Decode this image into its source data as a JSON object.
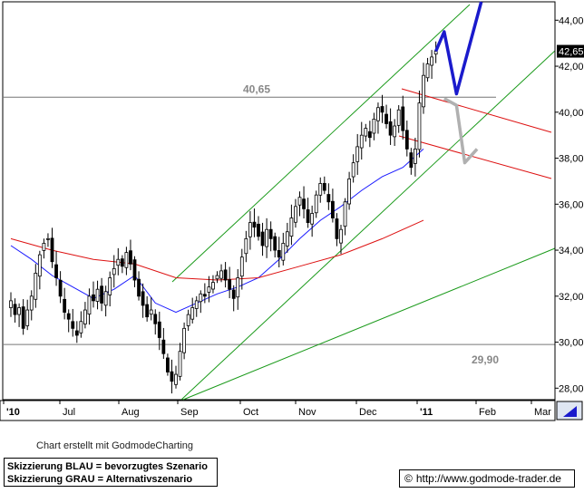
{
  "chart_data": {
    "type": "candlestick",
    "title": "",
    "xlabel": "",
    "ylabel": "",
    "ylim": [
      27.5,
      44.8
    ],
    "y_ticks": [
      "28,00",
      "30,00",
      "32,00",
      "34,00",
      "36,00",
      "38,00",
      "40,00",
      "42,00",
      "44,00"
    ],
    "x_tick_labels": [
      "'10",
      "Jul",
      "Aug",
      "Sep",
      "Oct",
      "Nov",
      "Dec",
      "'11",
      "Feb",
      "Mar"
    ],
    "last_price": "42,65",
    "grid": false,
    "horizontal_levels": [
      {
        "value": 40.65,
        "label": "40,65"
      },
      {
        "value": 29.9,
        "label": "29,90"
      }
    ],
    "price_path": [
      [
        0,
        31.8
      ],
      [
        1,
        31.2
      ],
      [
        2,
        31.5
      ],
      [
        3,
        30.6
      ],
      [
        4,
        31.4
      ],
      [
        5,
        32.0
      ],
      [
        6,
        33.0
      ],
      [
        7,
        33.8
      ],
      [
        8,
        34.3
      ],
      [
        9,
        34.5
      ],
      [
        10,
        33.5
      ],
      [
        11,
        32.8
      ],
      [
        12,
        32.0
      ],
      [
        13,
        31.3
      ],
      [
        14,
        31.0
      ],
      [
        15,
        30.6
      ],
      [
        16,
        30.3
      ],
      [
        17,
        30.9
      ],
      [
        18,
        31.4
      ],
      [
        19,
        32.0
      ],
      [
        20,
        31.8
      ],
      [
        21,
        32.3
      ],
      [
        22,
        31.7
      ],
      [
        23,
        32.2
      ],
      [
        24,
        32.8
      ],
      [
        25,
        33.2
      ],
      [
        26,
        33.6
      ],
      [
        27,
        33.3
      ],
      [
        28,
        33.9
      ],
      [
        29,
        33.4
      ],
      [
        30,
        32.7
      ],
      [
        31,
        32.0
      ],
      [
        32,
        31.6
      ],
      [
        33,
        31.1
      ],
      [
        34,
        31.4
      ],
      [
        35,
        30.8
      ],
      [
        36,
        30.2
      ],
      [
        37,
        29.5
      ],
      [
        38,
        28.7
      ],
      [
        39,
        28.3
      ],
      [
        40,
        28.6
      ],
      [
        41,
        29.6
      ],
      [
        42,
        30.6
      ],
      [
        43,
        31.2
      ],
      [
        44,
        31.5
      ],
      [
        45,
        31.8
      ],
      [
        46,
        32.1
      ],
      [
        47,
        32.0
      ],
      [
        48,
        32.4
      ],
      [
        49,
        32.6
      ],
      [
        50,
        32.9
      ],
      [
        51,
        33.1
      ],
      [
        52,
        32.7
      ],
      [
        53,
        32.3
      ],
      [
        54,
        31.9
      ],
      [
        55,
        32.8
      ],
      [
        56,
        33.7
      ],
      [
        57,
        34.5
      ],
      [
        58,
        35.2
      ],
      [
        59,
        35.0
      ],
      [
        60,
        34.6
      ],
      [
        61,
        34.2
      ],
      [
        62,
        34.9
      ],
      [
        63,
        34.5
      ],
      [
        64,
        34.0
      ],
      [
        65,
        33.7
      ],
      [
        66,
        34.3
      ],
      [
        67,
        34.8
      ],
      [
        68,
        35.4
      ],
      [
        69,
        35.9
      ],
      [
        70,
        36.3
      ],
      [
        71,
        35.8
      ],
      [
        72,
        35.2
      ],
      [
        73,
        35.6
      ],
      [
        74,
        36.4
      ],
      [
        75,
        36.9
      ],
      [
        76,
        36.6
      ],
      [
        77,
        36.1
      ],
      [
        78,
        35.4
      ],
      [
        79,
        34.5
      ],
      [
        80,
        34.9
      ],
      [
        81,
        36.1
      ],
      [
        82,
        37.1
      ],
      [
        83,
        37.8
      ],
      [
        84,
        38.5
      ],
      [
        85,
        39.0
      ],
      [
        86,
        39.3
      ],
      [
        87,
        38.9
      ],
      [
        88,
        39.7
      ],
      [
        89,
        40.2
      ],
      [
        90,
        40.0
      ],
      [
        91,
        39.5
      ],
      [
        92,
        39.0
      ],
      [
        93,
        39.4
      ],
      [
        94,
        40.1
      ],
      [
        95,
        39.2
      ],
      [
        96,
        38.4
      ],
      [
        97,
        37.6
      ],
      [
        98,
        38.4
      ],
      [
        99,
        40.4
      ],
      [
        100,
        41.6
      ],
      [
        101,
        42.1
      ],
      [
        102,
        42.4
      ],
      [
        103,
        42.65
      ]
    ],
    "series": [
      {
        "name": "",
        "color": "#1a1aff",
        "values": [
          [
            0,
            34.2
          ],
          [
            5,
            33.6
          ],
          [
            10,
            32.9
          ],
          [
            15,
            32.4
          ],
          [
            20,
            31.9
          ],
          [
            25,
            32.3
          ],
          [
            30,
            32.9
          ],
          [
            35,
            31.7
          ],
          [
            40,
            31.3
          ],
          [
            45,
            31.7
          ],
          [
            50,
            32.1
          ],
          [
            55,
            32.4
          ],
          [
            60,
            32.8
          ],
          [
            65,
            33.6
          ],
          [
            70,
            34.5
          ],
          [
            75,
            35.3
          ],
          [
            80,
            35.9
          ],
          [
            85,
            36.6
          ],
          [
            90,
            37.2
          ],
          [
            95,
            37.6
          ],
          [
            100,
            38.4
          ]
        ]
      },
      {
        "name": "",
        "color": "#dd1111",
        "values": [
          [
            0,
            34.5
          ],
          [
            10,
            34.0
          ],
          [
            20,
            33.6
          ],
          [
            30,
            33.4
          ],
          [
            40,
            32.8
          ],
          [
            50,
            32.7
          ],
          [
            60,
            32.8
          ],
          [
            70,
            33.3
          ],
          [
            80,
            33.8
          ],
          [
            90,
            34.5
          ],
          [
            100,
            35.3
          ]
        ]
      }
    ],
    "projection_blue": [
      [
        103,
        42.65
      ],
      [
        105,
        43.5
      ],
      [
        108,
        40.8
      ],
      [
        114,
        44.8
      ]
    ],
    "projection_gray": [
      [
        105,
        40.6
      ],
      [
        108,
        40.3
      ],
      [
        110,
        37.8
      ],
      [
        113,
        38.4
      ]
    ]
  },
  "credit_text": "Chart erstellt mit GodmodeCharting",
  "legend_lines": [
    "Skizzierung BLAU = bevorzugtes Szenario",
    "Skizzierung GRAU = Alternativszenario"
  ],
  "copyright_symbol": "©",
  "source_url": "http://www.godmode-trader.de"
}
